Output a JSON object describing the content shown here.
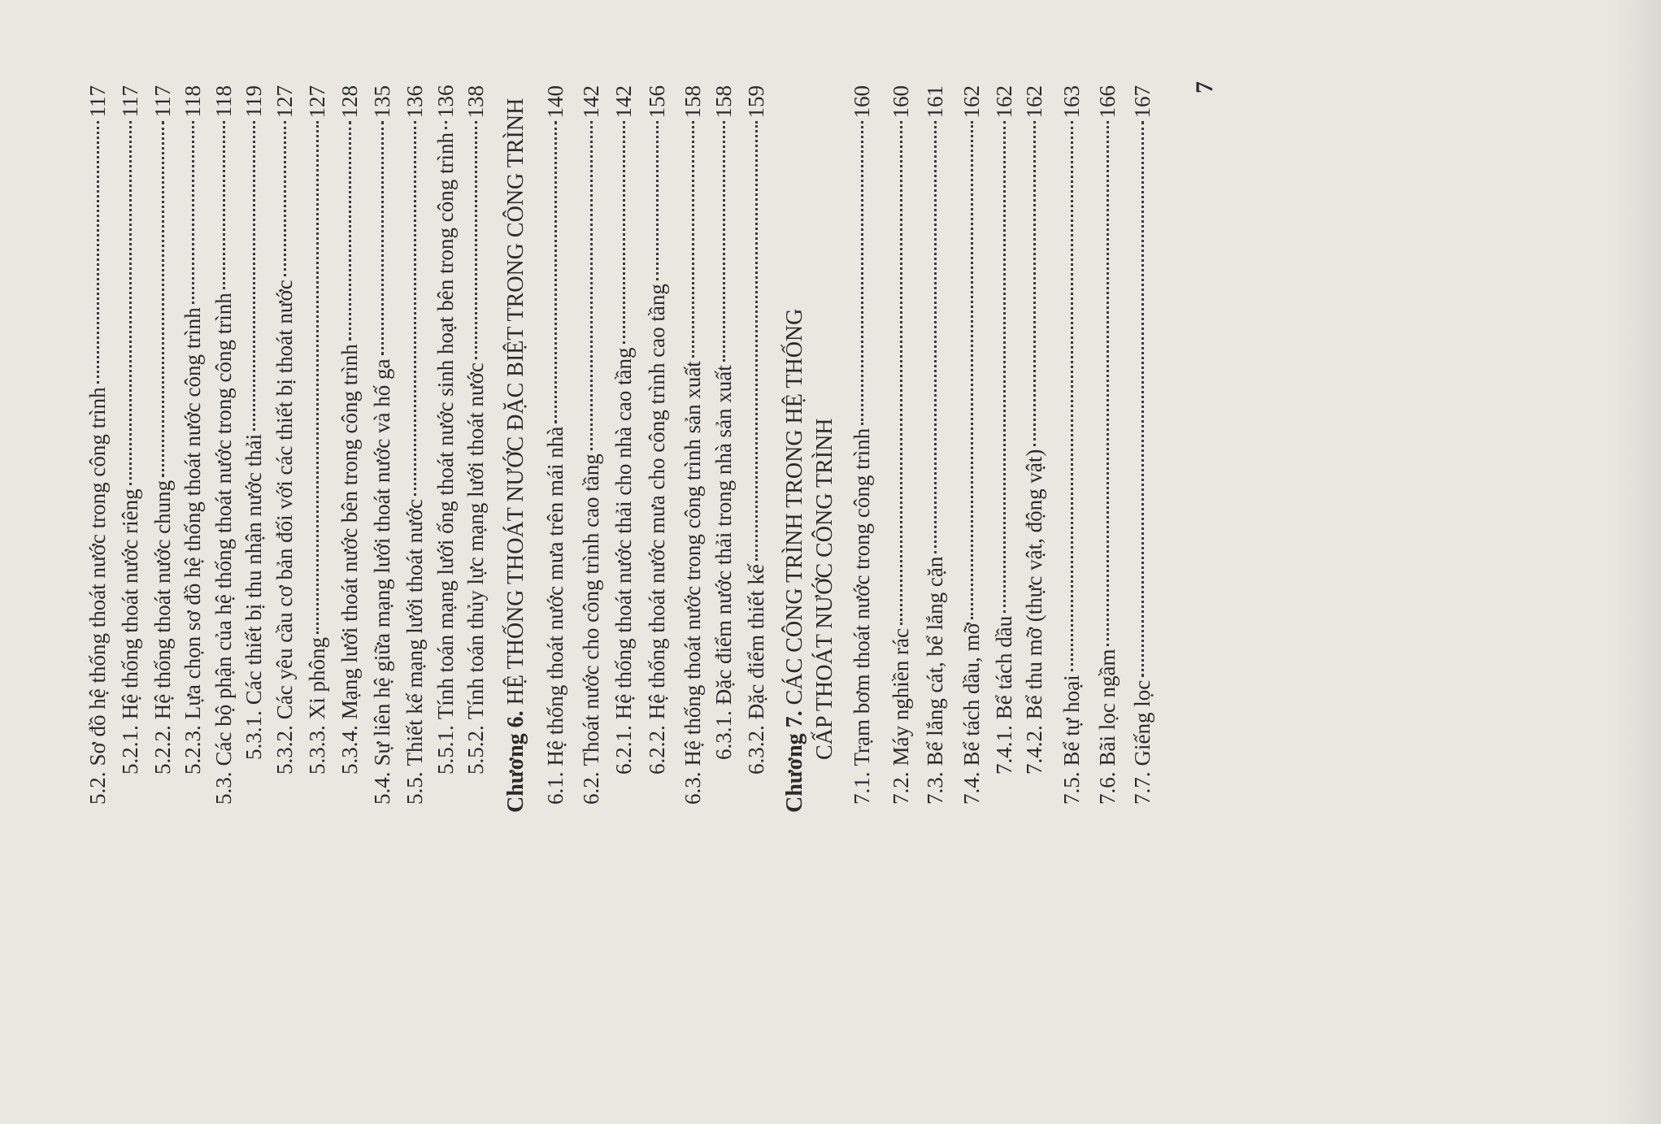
{
  "toc": {
    "entries": [
      {
        "num": "5.2.",
        "title": "Sơ đồ hệ thống thoát nước trong công trình",
        "page": "117",
        "level": 1
      },
      {
        "num": "5.2.1.",
        "title": "Hệ thống thoát nước riêng",
        "page": "117",
        "level": 2
      },
      {
        "num": "5.2.2.",
        "title": "Hệ thống thoát nước chung",
        "page": "117",
        "level": 2
      },
      {
        "num": "5.2.3.",
        "title": "Lựa chọn sơ đồ hệ thống thoát nước công trình",
        "page": "118",
        "level": 2
      },
      {
        "num": "5.3.",
        "title": "Các bộ phận của hệ thống thoát nước trong công trình",
        "page": "118",
        "level": 1
      },
      {
        "num": "5.3.1.",
        "title": "Các thiết bị thu nhận nước thải",
        "page": "119",
        "level": 3
      },
      {
        "num": "5.3.2.",
        "title": "Các yêu cầu cơ bản đối với các thiết bị thoát nước",
        "page": "127",
        "level": 2
      },
      {
        "num": "5.3.3.",
        "title": "Xi phông",
        "page": "127",
        "level": 2
      },
      {
        "num": "5.3.4.",
        "title": "Mạng lưới thoát nước bên trong công trình",
        "page": "128",
        "level": 2
      },
      {
        "num": "5.4.",
        "title": "Sự liên hệ giữa mạng lưới thoát nước và hố ga",
        "page": "135",
        "level": 1
      },
      {
        "num": "5.5.",
        "title": "Thiết kế mạng lưới thoát nước",
        "page": "136",
        "level": 1
      },
      {
        "num": "5.5.1.",
        "title": "Tính toán mạng lưới ống thoát nước sinh hoạt bên trong công trình",
        "page": "136",
        "level": 2
      },
      {
        "num": "5.5.2.",
        "title": "Tính toán thủy lực mạng lưới thoát nước",
        "page": "138",
        "level": 2
      },
      {
        "num": "Chương 6.",
        "title": "HỆ THỐNG THOÁT NƯỚC ĐẶC BIỆT TRONG CÔNG TRÌNH",
        "page": "",
        "level": 0
      },
      {
        "num": "6.1.",
        "title": "Hệ thống thoát nước mưa trên mái nhà",
        "page": "140",
        "level": 1
      },
      {
        "num": "6.2.",
        "title": "Thoát nước cho công trình cao tầng",
        "page": "142",
        "level": 1
      },
      {
        "num": "6.2.1.",
        "title": "Hệ thống thoát nước thải cho nhà cao tầng",
        "page": "142",
        "level": 2
      },
      {
        "num": "6.2.2.",
        "title": "Hệ thống thoát nước mưa cho công trình cao tầng",
        "page": "156",
        "level": 2
      },
      {
        "num": "6.3.",
        "title": "Hệ thống thoát nước trong công trình sản xuất",
        "page": "158",
        "level": 1
      },
      {
        "num": "6.3.1.",
        "title": "Đặc điểm nước thải trong nhà sản xuất",
        "page": "158",
        "level": 3
      },
      {
        "num": "6.3.2.",
        "title": "Đặc điểm thiết kế",
        "page": "159",
        "level": 2
      },
      {
        "num": "Chương 7.",
        "title": "CÁC CÔNG TRÌNH TRONG HỆ THỐNG",
        "page": "",
        "level": 0
      },
      {
        "num": "",
        "title": "CẤP THOÁT NƯỚC CÔNG TRÌNH",
        "page": "",
        "level": 4
      },
      {
        "num": "7.1.",
        "title": "Trạm bơm thoát nước trong công trình",
        "page": "160",
        "level": 1
      },
      {
        "num": "7.2.",
        "title": "Máy nghiền rác",
        "page": "160",
        "level": 1
      },
      {
        "num": "7.3.",
        "title": "Bể lắng cát, bể lắng cặn",
        "page": "161",
        "level": 1
      },
      {
        "num": "7.4.",
        "title": "Bể tách dầu, mỡ",
        "page": "162",
        "level": 1
      },
      {
        "num": "7.4.1.",
        "title": "Bể tách dầu",
        "page": "162",
        "level": 2
      },
      {
        "num": "7.4.2.",
        "title": "Bể thu mỡ (thực vật, động vật)",
        "page": "162",
        "level": 2
      },
      {
        "num": "7.5.",
        "title": "Bể tự hoại",
        "page": "163",
        "level": 1
      },
      {
        "num": "7.6.",
        "title": "Bãi lọc ngầm",
        "page": "166",
        "level": 1
      },
      {
        "num": "7.7.",
        "title": "Giếng lọc",
        "page": "167",
        "level": 1
      }
    ]
  },
  "page_number": "7"
}
